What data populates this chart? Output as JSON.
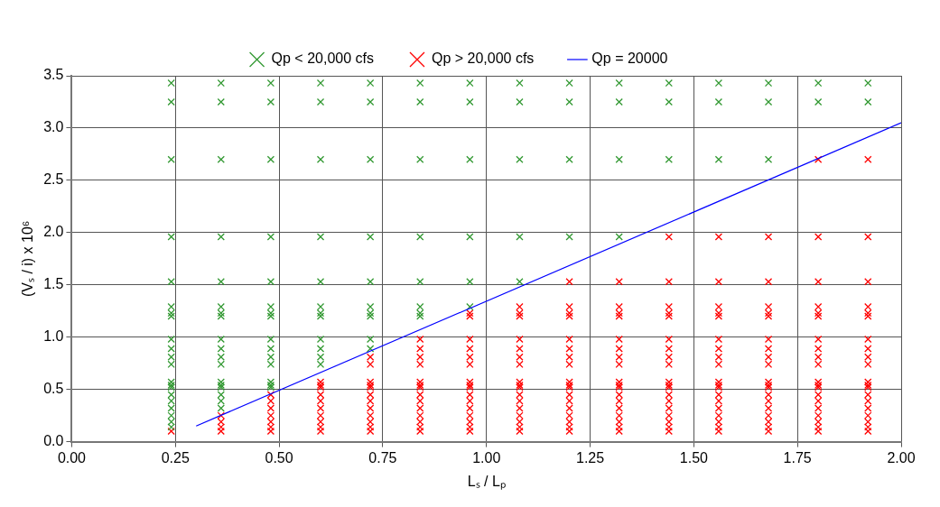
{
  "chart_data": {
    "type": "scatter",
    "xlabel": "Lₛ / Lₚ",
    "ylabel": "(Vₛ / i) x 10⁶",
    "legend": "top",
    "grid": true,
    "marker": "cross",
    "xlim": [
      0,
      2
    ],
    "xticks": [
      {
        "value": 0,
        "label": "0.00"
      },
      {
        "value": 0.25,
        "label": "0.25"
      },
      {
        "value": 0.5,
        "label": "0.50"
      },
      {
        "value": 0.75,
        "label": "0.75"
      },
      {
        "value": 1,
        "label": "1.00"
      },
      {
        "value": 1.25,
        "label": "1.25"
      },
      {
        "value": 1.5,
        "label": "1.50"
      },
      {
        "value": 1.75,
        "label": "1.75"
      },
      {
        "value": 2,
        "label": "2.00"
      }
    ],
    "ylim": [
      0,
      3.5
    ],
    "yticks": [
      {
        "value": 0,
        "label": "0.0"
      },
      {
        "value": 0.5,
        "label": "0.5"
      },
      {
        "value": 1,
        "label": "1.0"
      },
      {
        "value": 1.5,
        "label": "1.5"
      },
      {
        "value": 2,
        "label": "2.0"
      },
      {
        "value": 2.5,
        "label": "2.5"
      },
      {
        "value": 3,
        "label": "3.0"
      },
      {
        "value": 3.5,
        "label": "3.5"
      }
    ],
    "series": [
      {
        "name": "Qp < 20,000 cfs",
        "color": "#339933",
        "x": [
          0.24,
          0.24,
          0.24,
          0.24,
          0.24,
          0.24,
          0.24,
          0.24,
          0.24,
          0.24,
          0.24,
          0.24,
          0.24,
          0.24,
          0.24,
          0.24,
          0.24,
          0.24,
          0.24,
          0.24,
          0.24,
          0.36,
          0.36,
          0.36,
          0.36,
          0.36,
          0.36,
          0.36,
          0.36,
          0.36,
          0.36,
          0.36,
          0.36,
          0.36,
          0.36,
          0.36,
          0.36,
          0.36,
          0.36,
          0.48,
          0.48,
          0.48,
          0.48,
          0.48,
          0.48,
          0.48,
          0.48,
          0.48,
          0.48,
          0.48,
          0.48,
          0.48,
          0.48,
          0.48,
          0.6,
          0.6,
          0.6,
          0.6,
          0.6,
          0.6,
          0.6,
          0.6,
          0.6,
          0.6,
          0.6,
          0.6,
          0.72,
          0.72,
          0.72,
          0.72,
          0.72,
          0.72,
          0.72,
          0.72,
          0.72,
          0.72,
          0.84,
          0.84,
          0.84,
          0.84,
          0.84,
          0.84,
          0.84,
          0.84,
          0.96,
          0.96,
          0.96,
          0.96,
          0.96,
          0.96,
          1.08,
          1.08,
          1.08,
          1.08,
          1.08,
          1.2,
          1.2,
          1.2,
          1.2,
          1.32,
          1.32,
          1.32,
          1.32,
          1.44,
          1.44,
          1.44,
          1.56,
          1.56,
          1.56,
          1.68,
          1.68,
          1.68,
          1.8,
          1.8,
          1.92,
          1.92
        ],
        "values": [
          3.43,
          3.25,
          2.7,
          1.96,
          1.53,
          1.29,
          1.23,
          1.2,
          0.98,
          0.89,
          0.81,
          0.74,
          0.57,
          0.54,
          0.52,
          0.45,
          0.39,
          0.32,
          0.25,
          0.19,
          0.14,
          3.43,
          3.25,
          2.7,
          1.96,
          1.53,
          1.29,
          1.23,
          1.2,
          0.98,
          0.89,
          0.81,
          0.74,
          0.57,
          0.54,
          0.52,
          0.45,
          0.39,
          0.32,
          3.43,
          3.25,
          2.7,
          1.96,
          1.53,
          1.29,
          1.23,
          1.2,
          0.98,
          0.89,
          0.81,
          0.74,
          0.57,
          0.54,
          0.52,
          3.43,
          3.25,
          2.7,
          1.96,
          1.53,
          1.29,
          1.23,
          1.2,
          0.98,
          0.89,
          0.81,
          0.74,
          3.43,
          3.25,
          2.7,
          1.96,
          1.53,
          1.29,
          1.23,
          1.2,
          0.98,
          0.89,
          3.43,
          3.25,
          2.7,
          1.96,
          1.53,
          1.29,
          1.23,
          1.2,
          3.43,
          3.25,
          2.7,
          1.96,
          1.53,
          1.29,
          3.43,
          3.25,
          2.7,
          1.96,
          1.53,
          3.43,
          3.25,
          2.7,
          1.96,
          3.43,
          3.25,
          2.7,
          1.96,
          3.43,
          3.25,
          2.7,
          3.43,
          3.25,
          2.7,
          3.43,
          3.25,
          2.7,
          3.43,
          3.25,
          3.43,
          3.25
        ]
      },
      {
        "name": "Qp > 20,000 cfs",
        "color": "#ff0000",
        "x": [
          0.24,
          0.36,
          0.36,
          0.36,
          0.36,
          0.48,
          0.48,
          0.48,
          0.48,
          0.48,
          0.48,
          0.48,
          0.6,
          0.6,
          0.6,
          0.6,
          0.6,
          0.6,
          0.6,
          0.6,
          0.6,
          0.6,
          0.72,
          0.72,
          0.72,
          0.72,
          0.72,
          0.72,
          0.72,
          0.72,
          0.72,
          0.72,
          0.72,
          0.72,
          0.84,
          0.84,
          0.84,
          0.84,
          0.84,
          0.84,
          0.84,
          0.84,
          0.84,
          0.84,
          0.84,
          0.84,
          0.84,
          0.84,
          0.96,
          0.96,
          0.96,
          0.96,
          0.96,
          0.96,
          0.96,
          0.96,
          0.96,
          0.96,
          0.96,
          0.96,
          0.96,
          0.96,
          0.96,
          0.96,
          1.08,
          1.08,
          1.08,
          1.08,
          1.08,
          1.08,
          1.08,
          1.08,
          1.08,
          1.08,
          1.08,
          1.08,
          1.08,
          1.08,
          1.08,
          1.08,
          1.08,
          1.2,
          1.2,
          1.2,
          1.2,
          1.2,
          1.2,
          1.2,
          1.2,
          1.2,
          1.2,
          1.2,
          1.2,
          1.2,
          1.2,
          1.2,
          1.2,
          1.2,
          1.2,
          1.32,
          1.32,
          1.32,
          1.32,
          1.32,
          1.32,
          1.32,
          1.32,
          1.32,
          1.32,
          1.32,
          1.32,
          1.32,
          1.32,
          1.32,
          1.32,
          1.32,
          1.32,
          1.44,
          1.44,
          1.44,
          1.44,
          1.44,
          1.44,
          1.44,
          1.44,
          1.44,
          1.44,
          1.44,
          1.44,
          1.44,
          1.44,
          1.44,
          1.44,
          1.44,
          1.44,
          1.44,
          1.56,
          1.56,
          1.56,
          1.56,
          1.56,
          1.56,
          1.56,
          1.56,
          1.56,
          1.56,
          1.56,
          1.56,
          1.56,
          1.56,
          1.56,
          1.56,
          1.56,
          1.56,
          1.56,
          1.68,
          1.68,
          1.68,
          1.68,
          1.68,
          1.68,
          1.68,
          1.68,
          1.68,
          1.68,
          1.68,
          1.68,
          1.68,
          1.68,
          1.68,
          1.68,
          1.68,
          1.68,
          1.68,
          1.8,
          1.8,
          1.8,
          1.8,
          1.8,
          1.8,
          1.8,
          1.8,
          1.8,
          1.8,
          1.8,
          1.8,
          1.8,
          1.8,
          1.8,
          1.8,
          1.8,
          1.8,
          1.8,
          1.8,
          1.92,
          1.92,
          1.92,
          1.92,
          1.92,
          1.92,
          1.92,
          1.92,
          1.92,
          1.92,
          1.92,
          1.92,
          1.92,
          1.92,
          1.92,
          1.92,
          1.92,
          1.92,
          1.92,
          1.92
        ],
        "values": [
          0.1,
          0.25,
          0.19,
          0.14,
          0.1,
          0.45,
          0.39,
          0.32,
          0.25,
          0.19,
          0.14,
          0.1,
          0.57,
          0.54,
          0.52,
          0.45,
          0.39,
          0.32,
          0.25,
          0.19,
          0.14,
          0.1,
          0.81,
          0.74,
          0.57,
          0.54,
          0.52,
          0.45,
          0.39,
          0.32,
          0.25,
          0.19,
          0.14,
          0.1,
          0.98,
          0.89,
          0.81,
          0.74,
          0.57,
          0.54,
          0.52,
          0.45,
          0.39,
          0.32,
          0.25,
          0.19,
          0.14,
          0.1,
          1.23,
          1.2,
          0.98,
          0.89,
          0.81,
          0.74,
          0.57,
          0.54,
          0.52,
          0.45,
          0.39,
          0.32,
          0.25,
          0.19,
          0.14,
          0.1,
          1.29,
          1.23,
          1.2,
          0.98,
          0.89,
          0.81,
          0.74,
          0.57,
          0.54,
          0.52,
          0.45,
          0.39,
          0.32,
          0.25,
          0.19,
          0.14,
          0.1,
          1.53,
          1.29,
          1.23,
          1.2,
          0.98,
          0.89,
          0.81,
          0.74,
          0.57,
          0.54,
          0.52,
          0.45,
          0.39,
          0.32,
          0.25,
          0.19,
          0.14,
          0.1,
          1.53,
          1.29,
          1.23,
          1.2,
          0.98,
          0.89,
          0.81,
          0.74,
          0.57,
          0.54,
          0.52,
          0.45,
          0.39,
          0.32,
          0.25,
          0.19,
          0.14,
          0.1,
          1.96,
          1.53,
          1.29,
          1.23,
          1.2,
          0.98,
          0.89,
          0.81,
          0.74,
          0.57,
          0.54,
          0.52,
          0.45,
          0.39,
          0.32,
          0.25,
          0.19,
          0.14,
          0.1,
          1.96,
          1.53,
          1.29,
          1.23,
          1.2,
          0.98,
          0.89,
          0.81,
          0.74,
          0.57,
          0.54,
          0.52,
          0.45,
          0.39,
          0.32,
          0.25,
          0.19,
          0.14,
          0.1,
          1.96,
          1.53,
          1.29,
          1.23,
          1.2,
          0.98,
          0.89,
          0.81,
          0.74,
          0.57,
          0.54,
          0.52,
          0.45,
          0.39,
          0.32,
          0.25,
          0.19,
          0.14,
          0.1,
          2.7,
          1.96,
          1.53,
          1.29,
          1.23,
          1.2,
          0.98,
          0.89,
          0.81,
          0.74,
          0.57,
          0.54,
          0.52,
          0.45,
          0.39,
          0.32,
          0.25,
          0.19,
          0.14,
          0.1,
          2.7,
          1.96,
          1.53,
          1.29,
          1.23,
          1.2,
          0.98,
          0.89,
          0.81,
          0.74,
          0.57,
          0.54,
          0.52,
          0.45,
          0.39,
          0.32,
          0.25,
          0.19,
          0.14,
          0.1
        ]
      },
      {
        "name": "Qp = 20000",
        "type": "line",
        "marker": "none",
        "color": "#0000ff",
        "x": [
          0.3,
          2.0
        ],
        "values": [
          0.15,
          3.05
        ]
      }
    ]
  }
}
